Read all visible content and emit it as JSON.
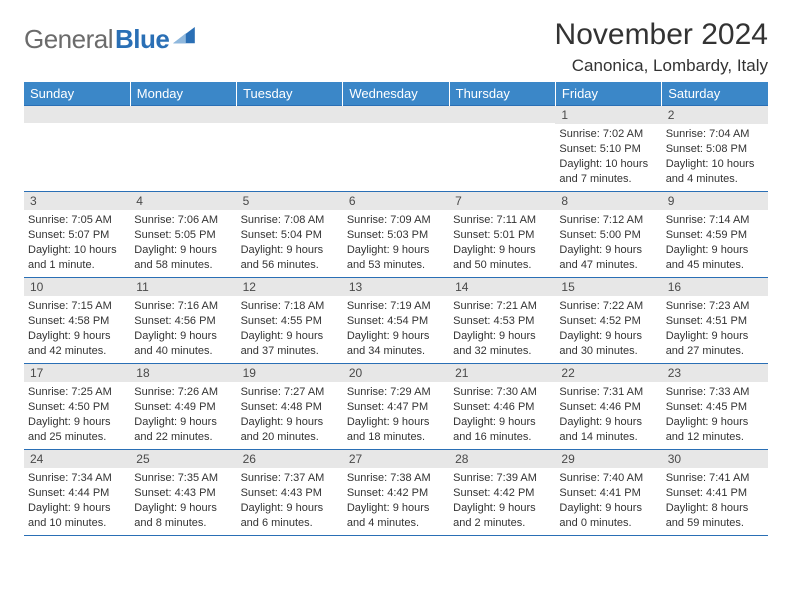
{
  "brand": {
    "part1": "General",
    "part2": "Blue"
  },
  "logo_colors": {
    "gray": "#6b6b6b",
    "blue": "#2a6fb5",
    "header_bg": "#3b87c8",
    "daynum_bg": "#e7e7e7",
    "rule": "#2a6fb5"
  },
  "title": "November 2024",
  "location": "Canonica, Lombardy, Italy",
  "weekdays": [
    "Sunday",
    "Monday",
    "Tuesday",
    "Wednesday",
    "Thursday",
    "Friday",
    "Saturday"
  ],
  "weeks": [
    [
      {
        "n": "",
        "sr": "",
        "ss": "",
        "dl": ""
      },
      {
        "n": "",
        "sr": "",
        "ss": "",
        "dl": ""
      },
      {
        "n": "",
        "sr": "",
        "ss": "",
        "dl": ""
      },
      {
        "n": "",
        "sr": "",
        "ss": "",
        "dl": ""
      },
      {
        "n": "",
        "sr": "",
        "ss": "",
        "dl": ""
      },
      {
        "n": "1",
        "sr": "Sunrise: 7:02 AM",
        "ss": "Sunset: 5:10 PM",
        "dl": "Daylight: 10 hours and 7 minutes."
      },
      {
        "n": "2",
        "sr": "Sunrise: 7:04 AM",
        "ss": "Sunset: 5:08 PM",
        "dl": "Daylight: 10 hours and 4 minutes."
      }
    ],
    [
      {
        "n": "3",
        "sr": "Sunrise: 7:05 AM",
        "ss": "Sunset: 5:07 PM",
        "dl": "Daylight: 10 hours and 1 minute."
      },
      {
        "n": "4",
        "sr": "Sunrise: 7:06 AM",
        "ss": "Sunset: 5:05 PM",
        "dl": "Daylight: 9 hours and 58 minutes."
      },
      {
        "n": "5",
        "sr": "Sunrise: 7:08 AM",
        "ss": "Sunset: 5:04 PM",
        "dl": "Daylight: 9 hours and 56 minutes."
      },
      {
        "n": "6",
        "sr": "Sunrise: 7:09 AM",
        "ss": "Sunset: 5:03 PM",
        "dl": "Daylight: 9 hours and 53 minutes."
      },
      {
        "n": "7",
        "sr": "Sunrise: 7:11 AM",
        "ss": "Sunset: 5:01 PM",
        "dl": "Daylight: 9 hours and 50 minutes."
      },
      {
        "n": "8",
        "sr": "Sunrise: 7:12 AM",
        "ss": "Sunset: 5:00 PM",
        "dl": "Daylight: 9 hours and 47 minutes."
      },
      {
        "n": "9",
        "sr": "Sunrise: 7:14 AM",
        "ss": "Sunset: 4:59 PM",
        "dl": "Daylight: 9 hours and 45 minutes."
      }
    ],
    [
      {
        "n": "10",
        "sr": "Sunrise: 7:15 AM",
        "ss": "Sunset: 4:58 PM",
        "dl": "Daylight: 9 hours and 42 minutes."
      },
      {
        "n": "11",
        "sr": "Sunrise: 7:16 AM",
        "ss": "Sunset: 4:56 PM",
        "dl": "Daylight: 9 hours and 40 minutes."
      },
      {
        "n": "12",
        "sr": "Sunrise: 7:18 AM",
        "ss": "Sunset: 4:55 PM",
        "dl": "Daylight: 9 hours and 37 minutes."
      },
      {
        "n": "13",
        "sr": "Sunrise: 7:19 AM",
        "ss": "Sunset: 4:54 PM",
        "dl": "Daylight: 9 hours and 34 minutes."
      },
      {
        "n": "14",
        "sr": "Sunrise: 7:21 AM",
        "ss": "Sunset: 4:53 PM",
        "dl": "Daylight: 9 hours and 32 minutes."
      },
      {
        "n": "15",
        "sr": "Sunrise: 7:22 AM",
        "ss": "Sunset: 4:52 PM",
        "dl": "Daylight: 9 hours and 30 minutes."
      },
      {
        "n": "16",
        "sr": "Sunrise: 7:23 AM",
        "ss": "Sunset: 4:51 PM",
        "dl": "Daylight: 9 hours and 27 minutes."
      }
    ],
    [
      {
        "n": "17",
        "sr": "Sunrise: 7:25 AM",
        "ss": "Sunset: 4:50 PM",
        "dl": "Daylight: 9 hours and 25 minutes."
      },
      {
        "n": "18",
        "sr": "Sunrise: 7:26 AM",
        "ss": "Sunset: 4:49 PM",
        "dl": "Daylight: 9 hours and 22 minutes."
      },
      {
        "n": "19",
        "sr": "Sunrise: 7:27 AM",
        "ss": "Sunset: 4:48 PM",
        "dl": "Daylight: 9 hours and 20 minutes."
      },
      {
        "n": "20",
        "sr": "Sunrise: 7:29 AM",
        "ss": "Sunset: 4:47 PM",
        "dl": "Daylight: 9 hours and 18 minutes."
      },
      {
        "n": "21",
        "sr": "Sunrise: 7:30 AM",
        "ss": "Sunset: 4:46 PM",
        "dl": "Daylight: 9 hours and 16 minutes."
      },
      {
        "n": "22",
        "sr": "Sunrise: 7:31 AM",
        "ss": "Sunset: 4:46 PM",
        "dl": "Daylight: 9 hours and 14 minutes."
      },
      {
        "n": "23",
        "sr": "Sunrise: 7:33 AM",
        "ss": "Sunset: 4:45 PM",
        "dl": "Daylight: 9 hours and 12 minutes."
      }
    ],
    [
      {
        "n": "24",
        "sr": "Sunrise: 7:34 AM",
        "ss": "Sunset: 4:44 PM",
        "dl": "Daylight: 9 hours and 10 minutes."
      },
      {
        "n": "25",
        "sr": "Sunrise: 7:35 AM",
        "ss": "Sunset: 4:43 PM",
        "dl": "Daylight: 9 hours and 8 minutes."
      },
      {
        "n": "26",
        "sr": "Sunrise: 7:37 AM",
        "ss": "Sunset: 4:43 PM",
        "dl": "Daylight: 9 hours and 6 minutes."
      },
      {
        "n": "27",
        "sr": "Sunrise: 7:38 AM",
        "ss": "Sunset: 4:42 PM",
        "dl": "Daylight: 9 hours and 4 minutes."
      },
      {
        "n": "28",
        "sr": "Sunrise: 7:39 AM",
        "ss": "Sunset: 4:42 PM",
        "dl": "Daylight: 9 hours and 2 minutes."
      },
      {
        "n": "29",
        "sr": "Sunrise: 7:40 AM",
        "ss": "Sunset: 4:41 PM",
        "dl": "Daylight: 9 hours and 0 minutes."
      },
      {
        "n": "30",
        "sr": "Sunrise: 7:41 AM",
        "ss": "Sunset: 4:41 PM",
        "dl": "Daylight: 8 hours and 59 minutes."
      }
    ]
  ]
}
